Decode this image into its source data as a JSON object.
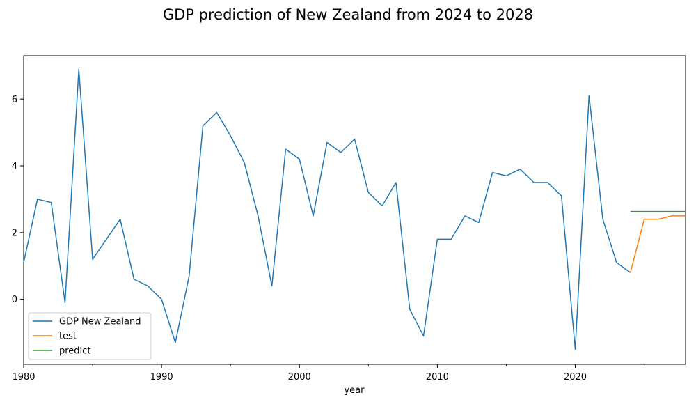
{
  "chart_data": {
    "type": "line",
    "title": "GDP prediction of New Zealand from 2024 to 2028",
    "xlabel": "year",
    "ylabel": "",
    "xlim": [
      1980,
      2028
    ],
    "ylim": [
      -1.95,
      7.3
    ],
    "x_major_ticks": [
      1980,
      1990,
      2000,
      2010,
      2020
    ],
    "x_minor_ticks": [
      1985,
      1995,
      2005,
      2015,
      2025
    ],
    "y_ticks": [
      0,
      2,
      4,
      6
    ],
    "x_tick_labels": [
      "1980",
      "1990",
      "2000",
      "2010",
      "2020"
    ],
    "y_tick_labels": [
      "0",
      "2",
      "4",
      "6"
    ],
    "grid": false,
    "legend_position": "lower-left",
    "series": [
      {
        "name": "GDP New Zealand",
        "color": "#1f77b4",
        "x": [
          1980,
          1981,
          1982,
          1983,
          1984,
          1985,
          1986,
          1987,
          1988,
          1989,
          1990,
          1991,
          1992,
          1993,
          1994,
          1995,
          1996,
          1997,
          1998,
          1999,
          2000,
          2001,
          2002,
          2003,
          2004,
          2005,
          2006,
          2007,
          2008,
          2009,
          2010,
          2011,
          2012,
          2013,
          2014,
          2015,
          2016,
          2017,
          2018,
          2019,
          2020,
          2021,
          2022,
          2023,
          2024
        ],
        "y": [
          1.1,
          3.0,
          2.9,
          -0.1,
          6.9,
          1.2,
          1.8,
          2.4,
          0.6,
          0.4,
          0.0,
          -1.3,
          0.7,
          5.2,
          5.6,
          4.9,
          4.1,
          2.5,
          0.4,
          4.5,
          4.2,
          2.5,
          4.7,
          4.4,
          4.8,
          3.2,
          2.8,
          3.5,
          -0.3,
          -1.1,
          1.8,
          1.8,
          2.5,
          2.3,
          3.8,
          3.7,
          3.9,
          3.5,
          3.5,
          3.1,
          -1.5,
          6.1,
          2.4,
          1.1,
          0.8
        ]
      },
      {
        "name": "test",
        "color": "#ff7f0e",
        "x": [
          2024,
          2025,
          2026,
          2027,
          2028
        ],
        "y": [
          0.8,
          2.4,
          2.4,
          2.5,
          2.5
        ]
      },
      {
        "name": "predict",
        "color": "#2ca02c",
        "x": [
          2024,
          2025,
          2026,
          2027,
          2028
        ],
        "y": [
          2.63,
          2.63,
          2.63,
          2.63,
          2.63
        ]
      }
    ]
  }
}
